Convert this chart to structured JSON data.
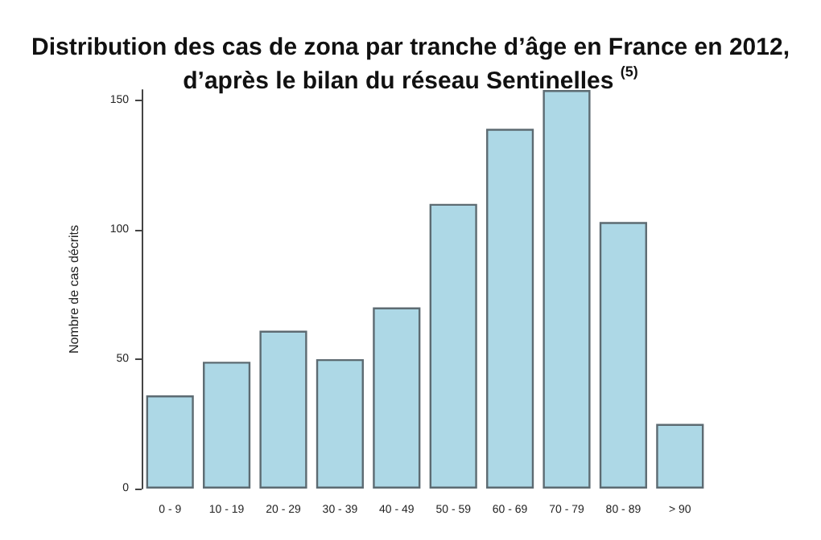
{
  "chart_data": {
    "type": "bar",
    "title": "Distribution des cas de zona par tranche d’âge en France en 2012,\nd’après le bilan du réseau Sentinelles $^{(5)}$",
    "ylabel": "Nombre de cas décrits",
    "categories": [
      "0 - 9",
      "10 - 19",
      "20 - 29",
      "30 - 39",
      "40 - 49",
      "50 - 59",
      "60 - 69",
      "70 - 79",
      "80 - 89",
      "> 90"
    ],
    "values": [
      36,
      49,
      61,
      50,
      70,
      110,
      139,
      154,
      103,
      25
    ],
    "color": "#add8e6",
    "ylim": [
      0,
      154
    ],
    "yticks": [
      0,
      50,
      100,
      150
    ],
    "grid": false
  }
}
